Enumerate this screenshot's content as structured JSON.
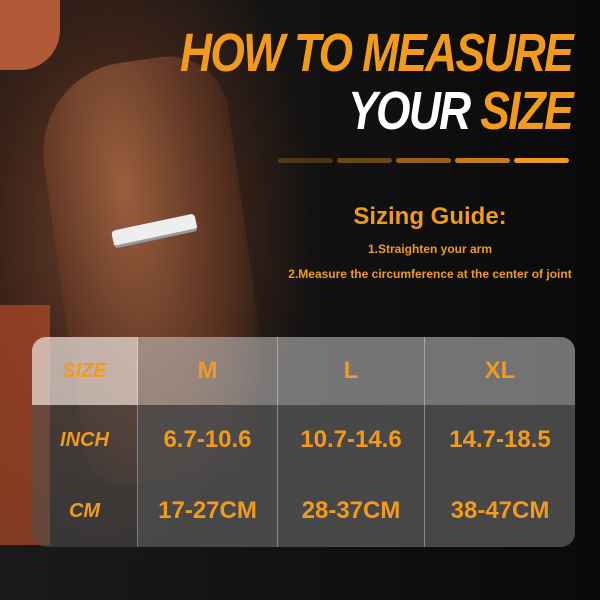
{
  "title": {
    "line1": "HOW TO MEASURE",
    "line2_white": "YOUR",
    "line2_accent": "SIZE"
  },
  "progress_segments": [
    0.25,
    0.4,
    0.6,
    0.8,
    1.0
  ],
  "guide": {
    "heading": "Sizing Guide:",
    "steps": [
      "1.Straighten your arm",
      "2.Measure the circumference at the center of joint"
    ]
  },
  "table": {
    "headers": [
      "SIZE",
      "M",
      "L",
      "XL"
    ],
    "rows": [
      [
        "INCH",
        "6.7-10.6",
        "10.7-14.6",
        "14.7-18.5"
      ],
      [
        "CM",
        "17-27CM",
        "28-37CM",
        "38-47CM"
      ]
    ]
  },
  "colors": {
    "accent": "#f29a1e",
    "background": "#0b0b0b"
  }
}
